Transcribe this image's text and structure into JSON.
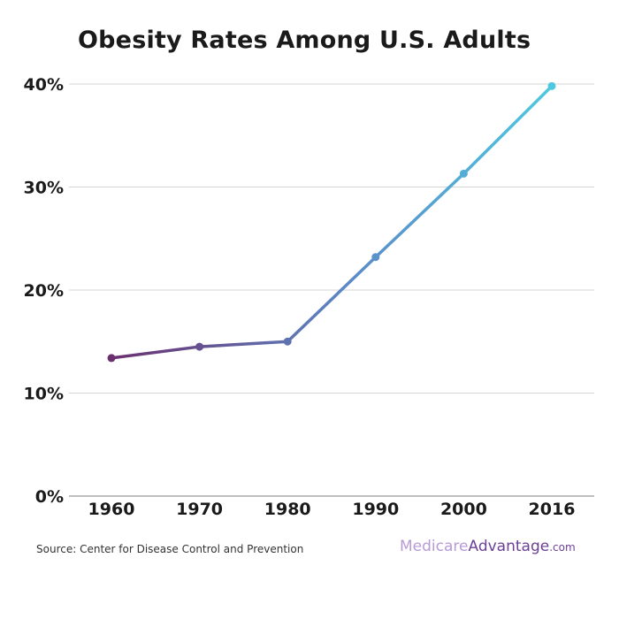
{
  "chart_data": {
    "type": "line",
    "title": "Obesity Rates Among U.S. Adults",
    "categories": [
      "1960",
      "1970",
      "1980",
      "1990",
      "2000",
      "2016"
    ],
    "series": [
      {
        "name": "Obesity rate",
        "values": [
          13.4,
          14.5,
          15.0,
          23.2,
          31.3,
          39.8
        ]
      }
    ],
    "y_ticks": [
      0,
      10,
      20,
      30,
      40
    ],
    "y_tick_labels": [
      "0%",
      "10%",
      "20%",
      "30%",
      "40%"
    ],
    "ylim": [
      0,
      40
    ],
    "xlabel": "",
    "ylabel": "",
    "grid": true,
    "colors": {
      "start": "#6b2f6f",
      "mid": "#5b8bc9",
      "end": "#4ec8e0",
      "gridline": "#d4d4d4",
      "axis": "#999999"
    }
  },
  "footer": {
    "source": "Source: Center for Disease Control and Prevention",
    "logo_part1": "Medicare",
    "logo_part2": "Advantage",
    "logo_part3": ".com"
  }
}
